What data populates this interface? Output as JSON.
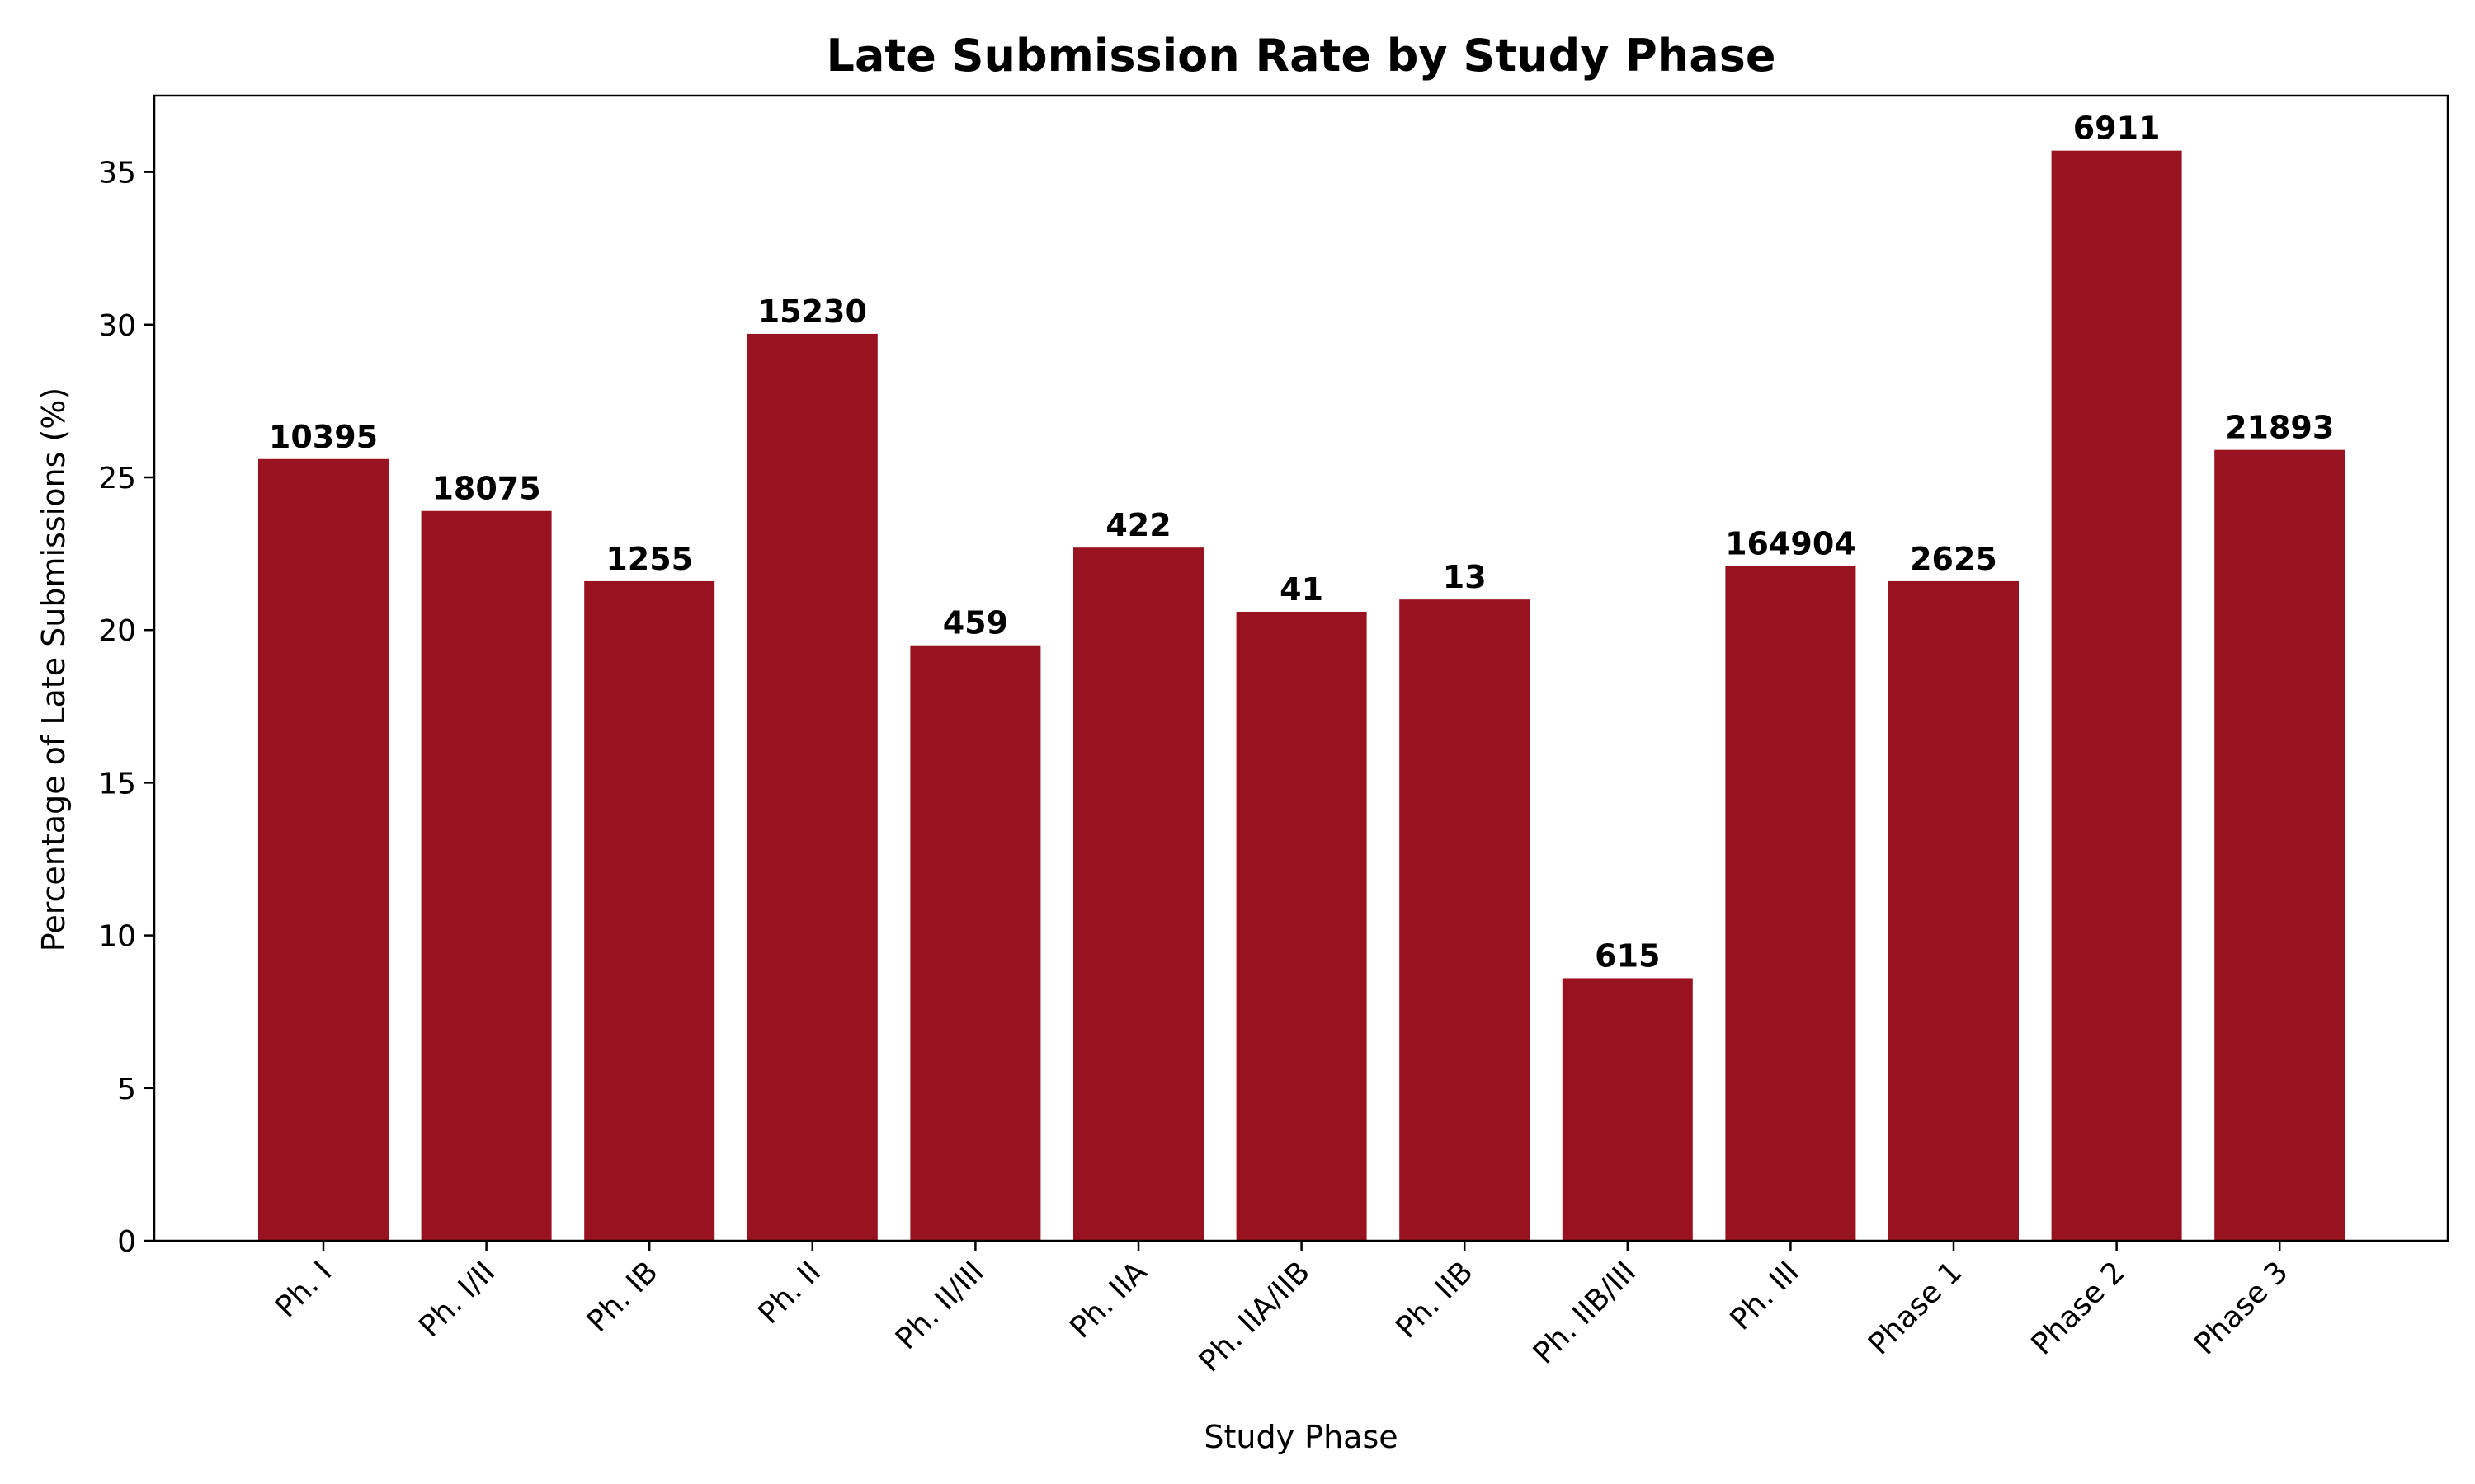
{
  "chart_data": {
    "type": "bar",
    "title": "Late Submission Rate by Study Phase",
    "xlabel": "Study Phase",
    "ylabel": "Percentage of Late Submissions (%)",
    "ylim": [
      0,
      37.5
    ],
    "yticks": [
      0,
      5,
      10,
      15,
      20,
      25,
      30,
      35
    ],
    "grid": false,
    "bar_color": "#99121f",
    "categories": [
      "Ph. I",
      "Ph. I/II",
      "Ph. IB",
      "Ph. II",
      "Ph. II/III",
      "Ph. IIA",
      "Ph. IIA/IIB",
      "Ph. IIB",
      "Ph. IIB/III",
      "Ph. III",
      "Phase 1",
      "Phase 2",
      "Phase 3"
    ],
    "values": [
      25.6,
      23.9,
      21.6,
      29.7,
      19.5,
      22.7,
      20.6,
      21.0,
      8.6,
      22.1,
      21.6,
      35.7,
      25.9
    ],
    "data_labels": [
      "10395",
      "18075",
      "1255",
      "15230",
      "459",
      "422",
      "41",
      "13",
      "615",
      "164904",
      "2625",
      "6911",
      "21893"
    ]
  }
}
